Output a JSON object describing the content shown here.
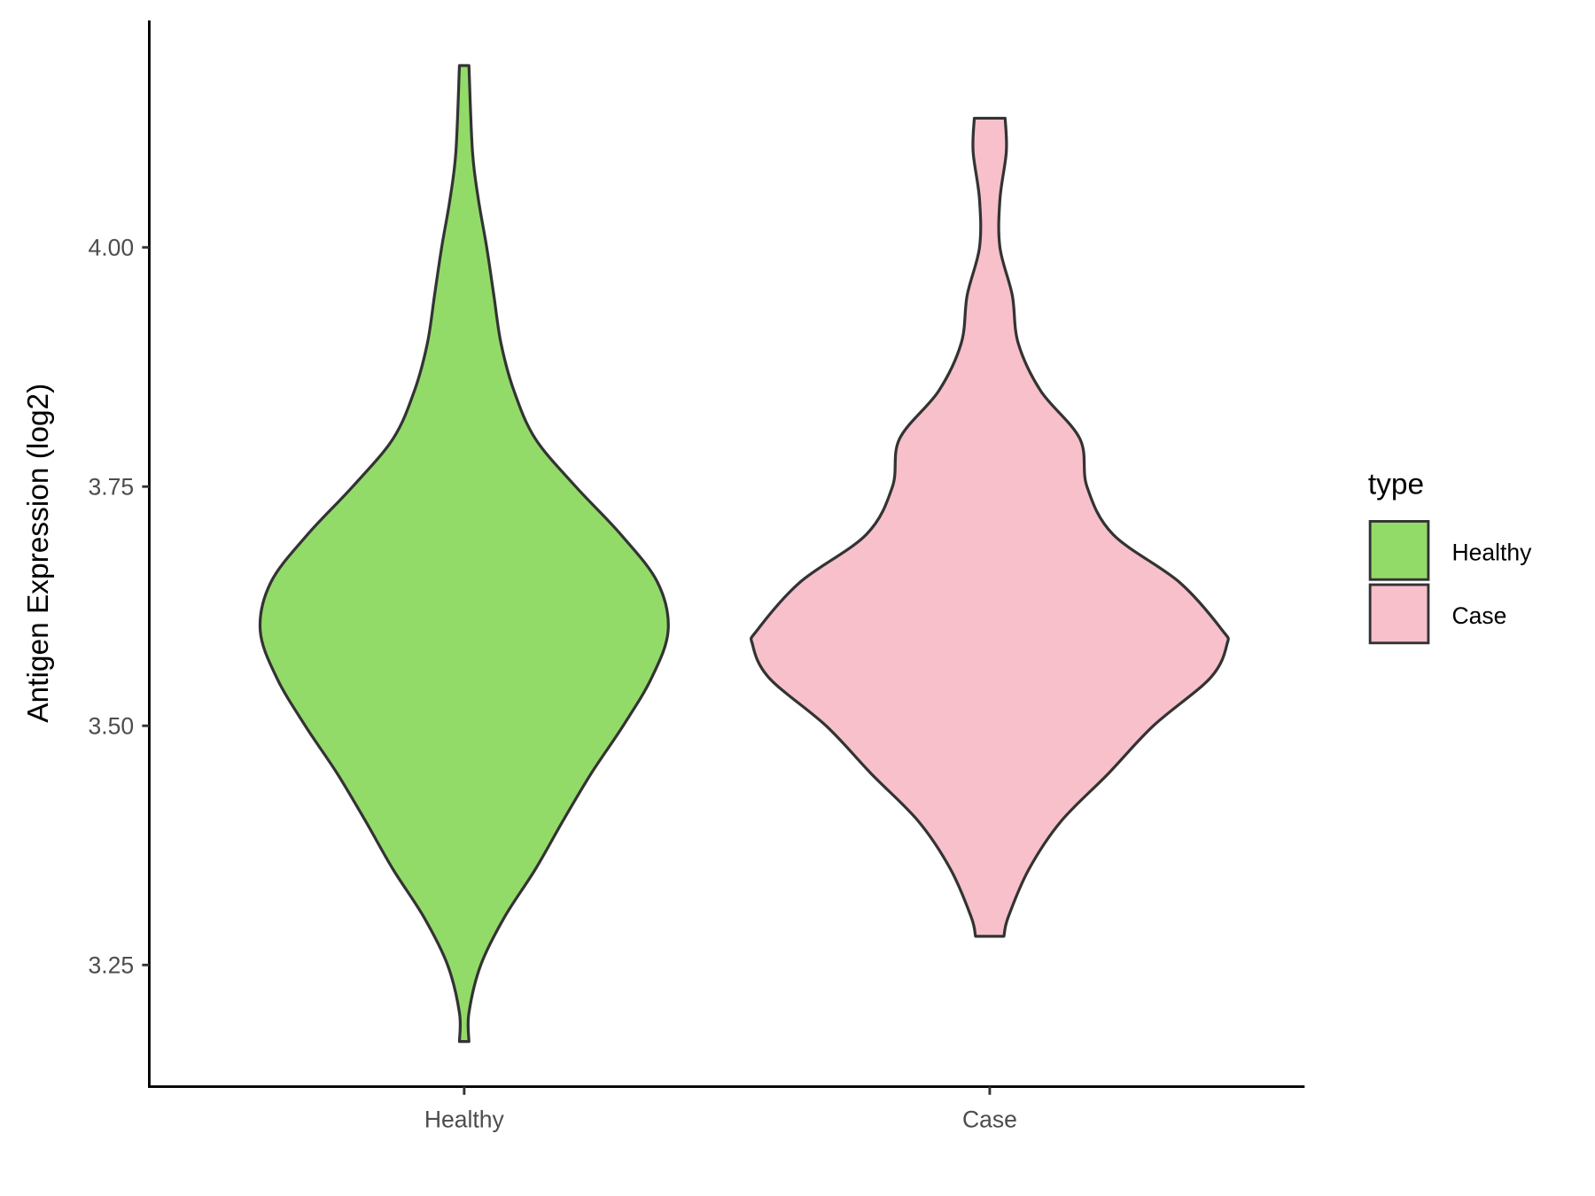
{
  "chart_data": {
    "type": "violin",
    "title": "",
    "xlabel": "",
    "ylabel": "Antigen Expression (log2)",
    "categories": [
      "Healthy",
      "Case"
    ],
    "ylim": [
      3.12,
      4.24
    ],
    "yticks": [
      3.25,
      3.5,
      3.75,
      4.0
    ],
    "ytick_labels": [
      "3.25",
      "3.50",
      "3.75",
      "4.00"
    ],
    "grid": false,
    "legend": {
      "title": "type",
      "position": "right",
      "entries": [
        "Healthy",
        "Case"
      ]
    },
    "series": [
      {
        "name": "Healthy",
        "color": "#93DB69",
        "min": 3.17,
        "max": 4.19,
        "density_profile": {
          "y": [
            4.19,
            4.1,
            4.05,
            4.0,
            3.95,
            3.9,
            3.85,
            3.8,
            3.75,
            3.7,
            3.65,
            3.6,
            3.55,
            3.5,
            3.45,
            3.4,
            3.35,
            3.3,
            3.25,
            3.2,
            3.17
          ],
          "relative_width": [
            0.02,
            0.035,
            0.06,
            0.095,
            0.125,
            0.155,
            0.21,
            0.3,
            0.47,
            0.66,
            0.815,
            0.86,
            0.79,
            0.67,
            0.535,
            0.415,
            0.3,
            0.17,
            0.07,
            0.02,
            0.02
          ]
        }
      },
      {
        "name": "Case",
        "color": "#F7C0CB",
        "min": 3.28,
        "max": 4.135,
        "density_profile": {
          "y": [
            4.135,
            4.1,
            4.05,
            4.0,
            3.95,
            3.9,
            3.85,
            3.8,
            3.75,
            3.7,
            3.65,
            3.6,
            3.585,
            3.55,
            3.5,
            3.45,
            3.4,
            3.35,
            3.3,
            3.28
          ],
          "relative_width": [
            0.065,
            0.07,
            0.043,
            0.043,
            0.095,
            0.12,
            0.215,
            0.38,
            0.41,
            0.52,
            0.8,
            0.98,
            1.0,
            0.93,
            0.69,
            0.5,
            0.3,
            0.165,
            0.078,
            0.06
          ]
        }
      }
    ],
    "outline_color": "#333333"
  }
}
